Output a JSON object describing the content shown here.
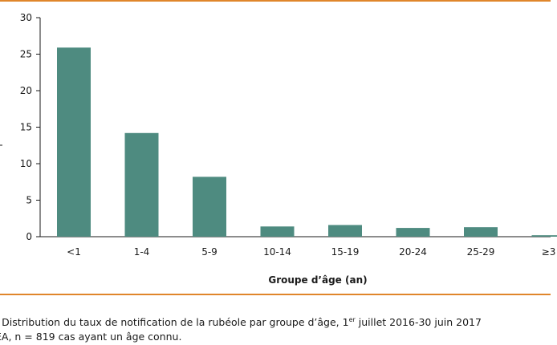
{
  "chart_data": {
    "type": "bar",
    "categories": [
      "<1",
      "1-4",
      "5-9",
      "10-14",
      "15-19",
      "20-24",
      "25-29",
      "≥3"
    ],
    "values": [
      25.9,
      14.2,
      8.2,
      1.4,
      1.6,
      1.2,
      1.3,
      0.2
    ],
    "xlabel": "Groupe d’âge (an)",
    "ylabel": "",
    "ylim": [
      0,
      30
    ],
    "yticks": [
      0,
      5,
      10,
      15,
      20,
      25,
      30
    ],
    "grid": false,
    "bar_color": "#4e8b80"
  },
  "caption": {
    "line1_prefix": ": Distribution du taux de notification de la rubéole par groupe d’âge, 1",
    "line1_sup": "er",
    "line1_suffix": " juillet 2016-30 juin 2017",
    "line2": "EA, n = 819 cas ayant un âge connu."
  },
  "colors": {
    "rule": "#e0862b",
    "bar": "#4e8b80"
  }
}
